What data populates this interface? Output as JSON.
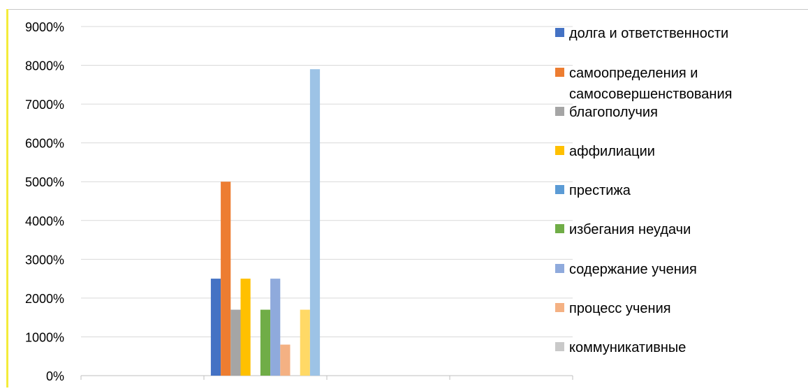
{
  "chart_data": {
    "type": "bar",
    "title": "",
    "xlabel": "",
    "ylabel": "",
    "ylim": [
      0,
      9000
    ],
    "y_ticks": [
      0,
      1000,
      2000,
      3000,
      4000,
      5000,
      6000,
      7000,
      8000,
      9000
    ],
    "y_tick_labels": [
      "0%",
      "1000%",
      "2000%",
      "3000%",
      "4000%",
      "5000%",
      "6000%",
      "7000%",
      "8000%",
      "9000%"
    ],
    "grid": true,
    "legend_position": "right",
    "categories": [
      "",
      "",
      "",
      ""
    ],
    "series": [
      {
        "name": "долга и ответственности",
        "color": "#4472c4",
        "values": [
          null,
          2500,
          null,
          null
        ]
      },
      {
        "name": "самоопределения и самосовершенствования",
        "legend_lines": [
          "самоопределения и",
          "самосовершенствования"
        ],
        "color": "#ed7d31",
        "values": [
          null,
          5000,
          null,
          null
        ]
      },
      {
        "name": "благополучия",
        "color": "#a5a5a5",
        "values": [
          null,
          1700,
          null,
          null
        ]
      },
      {
        "name": "аффилиации",
        "color": "#ffc000",
        "values": [
          null,
          2500,
          null,
          null
        ]
      },
      {
        "name": "престижа",
        "color": "#5b9bd5",
        "values": [
          null,
          0,
          null,
          null
        ]
      },
      {
        "name": "избегания неудачи",
        "color": "#70ad47",
        "values": [
          null,
          1700,
          null,
          null
        ]
      },
      {
        "name": "содержание учения",
        "color": "#8faadc",
        "values": [
          null,
          2500,
          null,
          null
        ]
      },
      {
        "name": "процесс учения",
        "color": "#f4b183",
        "values": [
          null,
          800,
          null,
          null
        ]
      },
      {
        "name": "коммуникативные",
        "color": "#c9c9c9",
        "values": [
          null,
          0,
          null,
          null
        ]
      },
      {
        "name": "",
        "color": "#ffd966",
        "values": [
          null,
          1700,
          null,
          null
        ]
      },
      {
        "name": "",
        "color": "#9dc3e6",
        "values": [
          null,
          7900,
          null,
          null
        ]
      }
    ]
  }
}
